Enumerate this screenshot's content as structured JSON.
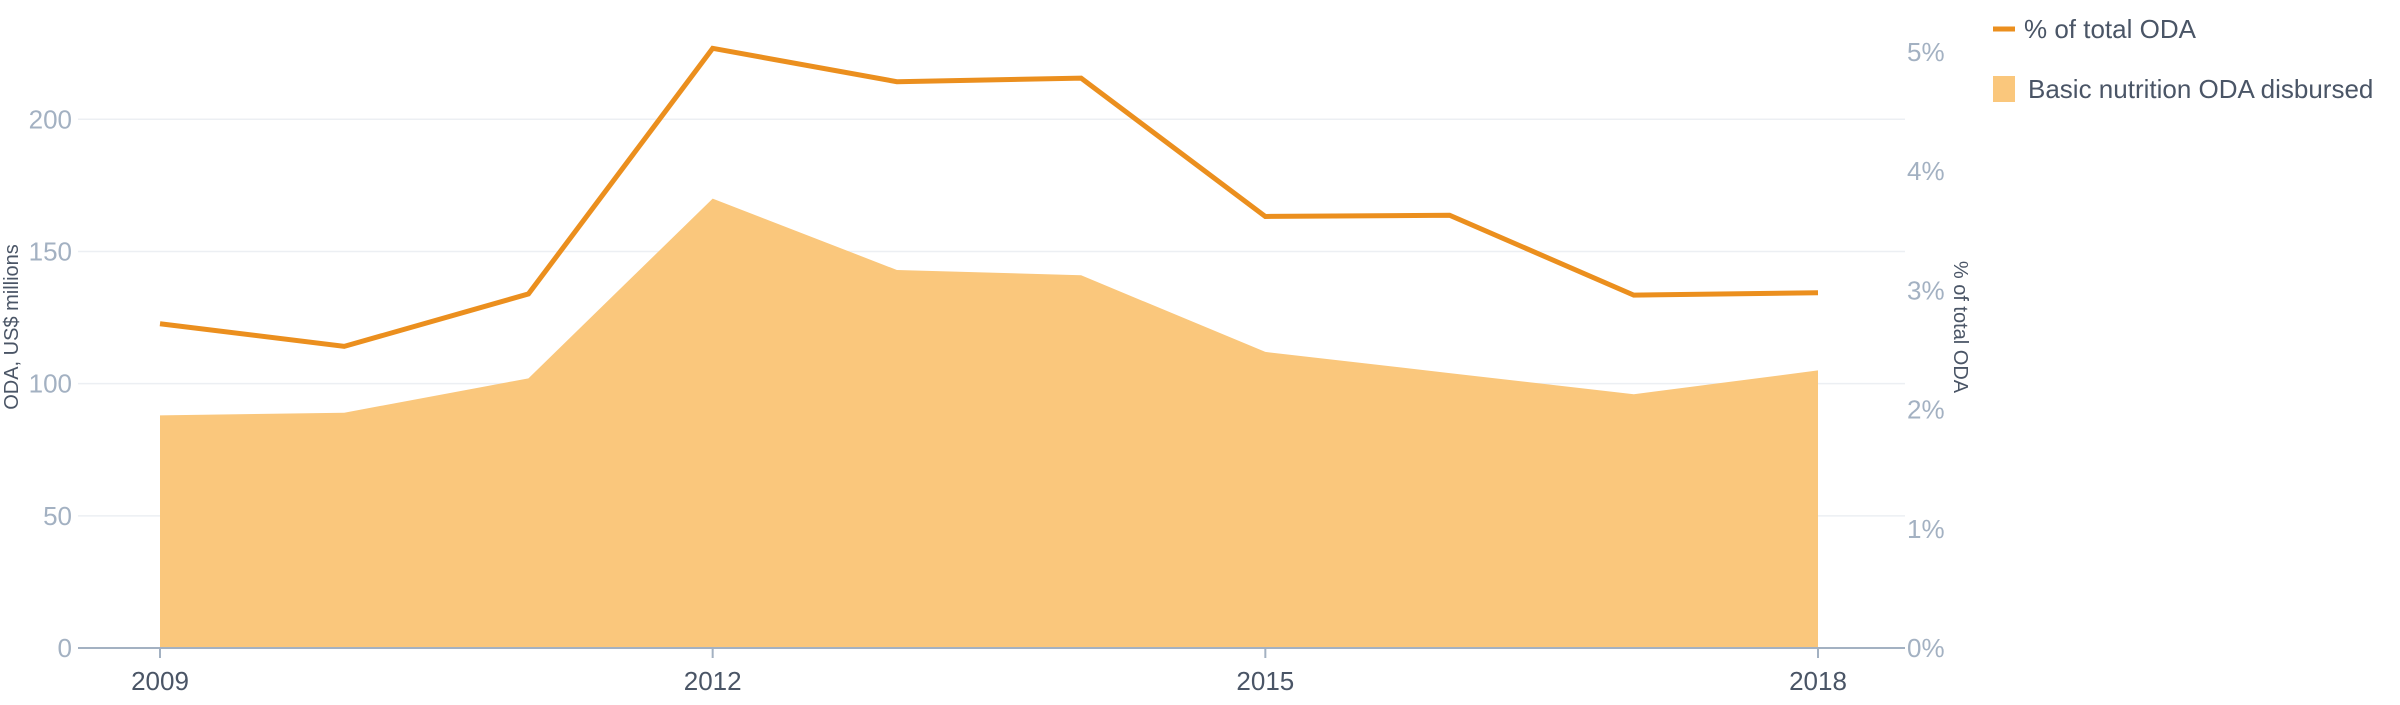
{
  "chart_data": {
    "type": "area",
    "x": [
      2009,
      2010,
      2011,
      2012,
      2013,
      2014,
      2015,
      2016,
      2017,
      2018
    ],
    "x_tick_labels": [
      "2009",
      "2012",
      "2015",
      "2018"
    ],
    "left_axis": {
      "label": "ODA, US$ millions",
      "ticks": [
        "0",
        "50",
        "100",
        "150",
        "200"
      ],
      "ylim": [
        0,
        230
      ]
    },
    "right_axis": {
      "label": "% of total ODA",
      "ticks": [
        "0%",
        "1%",
        "2%",
        "3%",
        "4%",
        "5%"
      ],
      "ylim": [
        0,
        5.1
      ]
    },
    "series": [
      {
        "name": "Basic nutrition ODA disbursed",
        "kind": "area",
        "axis": "left",
        "color": "#fac77c",
        "values": [
          88,
          89,
          102,
          170,
          143,
          141,
          112,
          104,
          96,
          105
        ]
      },
      {
        "name": "% of total ODA",
        "kind": "line",
        "axis": "right",
        "color": "#eb8f1e",
        "values": [
          2.72,
          2.53,
          2.97,
          5.03,
          4.75,
          4.78,
          3.62,
          3.63,
          2.96,
          2.98
        ]
      }
    ],
    "grid": "horizontal",
    "legend_position": "top-right"
  }
}
